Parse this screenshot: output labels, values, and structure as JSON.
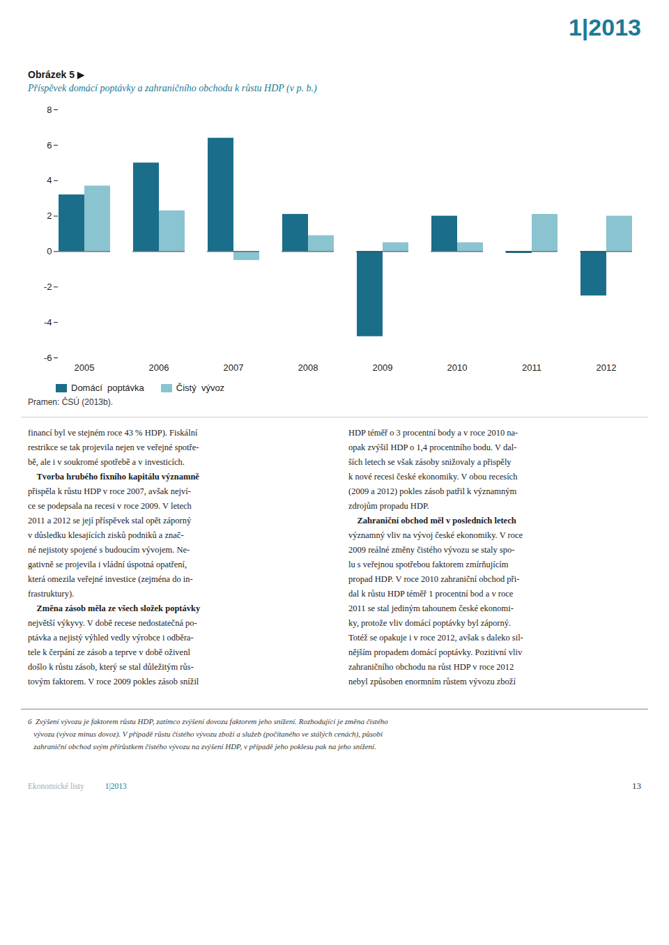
{
  "chart_data": {
    "type": "bar",
    "header": "1|2013",
    "title": "Obrázek 5 ▶",
    "subtitle": "Příspěvek domácí poptávky a zahraničního obchodu k růstu HDP (v p. b.)",
    "categories": [
      "2005",
      "2006",
      "2007",
      "2008",
      "2009",
      "2010",
      "2011",
      "2012"
    ],
    "series": [
      {
        "name": "Domácí  poptávka",
        "color": "#1a6e8a",
        "values": [
          3.2,
          5.0,
          6.4,
          2.1,
          -4.8,
          2.0,
          -0.1,
          -2.5
        ]
      },
      {
        "name": "Čistý  vývoz",
        "color": "#8ac4d0",
        "values": [
          3.7,
          2.3,
          -0.5,
          0.9,
          0.5,
          0.5,
          2.1,
          2.0
        ]
      }
    ],
    "ylim": [
      -6,
      8
    ],
    "yticks": [
      -6,
      -4,
      -2,
      0,
      2,
      4,
      6,
      8
    ],
    "grid": false,
    "legend": "bottom",
    "source": "Pramen: ČSÚ (2013b).",
    "body_columns": [
      [
        "financí byl ve stejném roce 43 % HDP). Fiskální",
        "restrikce se tak projevila nejen ve veřejné spotře-",
        "bě, ale i v soukromé spotřebě a v investicích.",
        "    Tvorba hrubého fixního kapitálu významně",
        "přispěla k růstu HDP v roce 2007, avšak nejví-",
        "ce se podepsala na recesi v roce 2009. V letech",
        "2011 a 2012 se její příspěvek stal opět záporný",
        "v důsledku klesajících zisků podniků a znač-",
        "né nejistoty spojené s budoucím vývojem. Ne-",
        "gativně se projevila i vládní úspotná opatření,",
        "která omezila veřejné investice (zejména do in-",
        "frastruktury).",
        "    Změna zásob měla ze všech složek poptávky",
        "největší výkyvy. V době recese nedostatečná po-",
        "ptávka a nejistý výhled vedly výrobce i odběra-",
        "tele k čerpání ze zásob a teprve v době oživenl",
        "došlo k růstu zásob, který se stal důležitým růs-",
        "tovým faktorem. V roce 2009 pokles zásob snížil"
      ],
      [
        "HDP téměř o 3 procentní body a v roce 2010 na-",
        "opak zvýšil HDP o 1,4 procentního bodu. V dal-",
        "ších letech se však zásoby snižovaly a přispěly",
        "k nové recesi české ekonomiky. V obou recesích",
        "(2009 a 2012) pokles zásob patřil k významným",
        "zdrojům propadu HDP.",
        "    Zahraniční obchod měl v posledních letech",
        "významný vliv na vývoj české ekonomiky. V roce",
        "2009 reálné změny čistého vývozu se staly spo-",
        "lu s veřejnou spotřebou faktorem zmírňujícím",
        "propad HDP. V roce 2010 zahraniční obchod při-",
        "dal k růstu HDP téměř 1 procentní bod a v roce",
        "2011 se stal jediným tahounem české ekonomi-",
        "ky, protože vliv domácí poptávky byl záporný.",
        "Totéž se opakuje i v roce 2012, avšak s daleko sil-",
        "nějším propadem domácí poptávky. Pozitivní vliv",
        "zahraničního obchodu na růst HDP v roce 2012",
        "nebyl způsoben enormním růstem vývozu zboží"
      ]
    ],
    "footnote": [
      "6  Zvýšení vývozu je faktorem růstu HDP, zatímco zvýšení dovozu faktorem jeho snížení. Rozhodující je změna čistého",
      "   vývozu (vývoz minus dovoz). V případě růstu čistého vývozu zboží a služeb (počítaného ve stálých cenách), působí",
      "   zahraniční obchod svým přírůstkem čistého vývozu na zvýšení HDP, v případě jeho poklesu pak na jeho snížení."
    ],
    "footer": [
      "Ekonomické listy",
      "1|2013",
      "13"
    ]
  }
}
